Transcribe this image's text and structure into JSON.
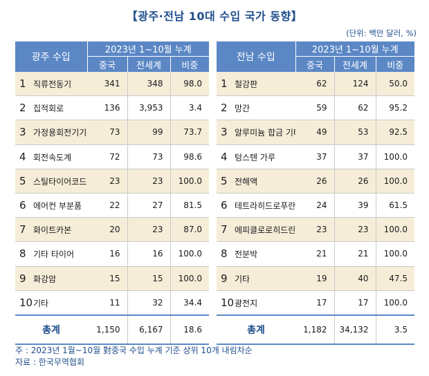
{
  "title": "【광주·전남 10대 수입 국가 동향】",
  "unit": "(단위: 백만 달러, %)",
  "period": "2023년 1~10월 누계",
  "sub_headers": [
    "중국",
    "전세계",
    "비중"
  ],
  "left": {
    "region": "광주 수입",
    "rows": [
      {
        "rank": "1",
        "item": "직류전동기",
        "china": "341",
        "world": "348",
        "share": "98.0"
      },
      {
        "rank": "2",
        "item": "집적회로",
        "china": "136",
        "world": "3,953",
        "share": "3.4"
      },
      {
        "rank": "3",
        "item": "가정용회전기기",
        "china": "73",
        "world": "99",
        "share": "73.7"
      },
      {
        "rank": "4",
        "item": "회전속도계",
        "china": "72",
        "world": "73",
        "share": "98.6"
      },
      {
        "rank": "5",
        "item": "스틸타이어코드",
        "china": "23",
        "world": "23",
        "share": "100.0"
      },
      {
        "rank": "6",
        "item": "에어컨 부분품",
        "china": "22",
        "world": "27",
        "share": "81.5"
      },
      {
        "rank": "7",
        "item": "화이트카본",
        "china": "20",
        "world": "23",
        "share": "87.0"
      },
      {
        "rank": "8",
        "item": "기타 타이어",
        "china": "16",
        "world": "16",
        "share": "100.0"
      },
      {
        "rank": "9",
        "item": "화강암",
        "china": "15",
        "world": "15",
        "share": "100.0"
      },
      {
        "rank": "10",
        "item": "기타",
        "china": "11",
        "world": "32",
        "share": "34.4"
      }
    ],
    "total": {
      "label": "총계",
      "china": "1,150",
      "world": "6,167",
      "share": "18.6"
    }
  },
  "right": {
    "region": "전남 수입",
    "rows": [
      {
        "rank": "1",
        "item": "철강판",
        "china": "62",
        "world": "124",
        "share": "50.0"
      },
      {
        "rank": "2",
        "item": "망간",
        "china": "59",
        "world": "62",
        "share": "95.2"
      },
      {
        "rank": "3",
        "item": "알루미늄 합금 기타",
        "china": "49",
        "world": "53",
        "share": "92.5"
      },
      {
        "rank": "4",
        "item": "텅스텐 가루",
        "china": "37",
        "world": "37",
        "share": "100.0"
      },
      {
        "rank": "5",
        "item": "전해액",
        "china": "26",
        "world": "26",
        "share": "100.0"
      },
      {
        "rank": "6",
        "item": "테트라히드로푸란",
        "china": "24",
        "world": "39",
        "share": "61.5"
      },
      {
        "rank": "7",
        "item": "에피클로로히드린",
        "china": "23",
        "world": "23",
        "share": "100.0"
      },
      {
        "rank": "8",
        "item": "전분박",
        "china": "21",
        "world": "21",
        "share": "100.0"
      },
      {
        "rank": "9",
        "item": "기타",
        "china": "19",
        "world": "40",
        "share": "47.5"
      },
      {
        "rank": "10",
        "item": "광전지",
        "china": "17",
        "world": "17",
        "share": "100.0"
      }
    ],
    "total": {
      "label": "총계",
      "china": "1,182",
      "world": "34,132",
      "share": "3.5"
    }
  },
  "notes": [
    "주 : 2023년 1월~10월 對중국 수입 누계 기준 상위 10개 내림차순",
    "자료 : 한국무역협회"
  ]
}
